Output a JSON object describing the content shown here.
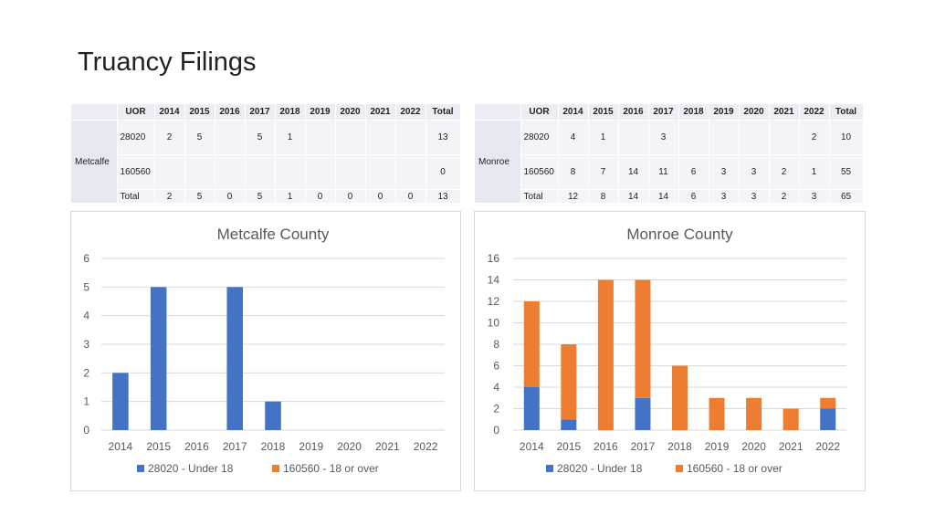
{
  "page_title": "Truancy Filings",
  "tables": {
    "metcalfe": {
      "county": "Metcalfe",
      "headers": [
        "UOR",
        "2014",
        "2015",
        "2016",
        "2017",
        "2018",
        "2019",
        "2020",
        "2021",
        "2022",
        "Total"
      ],
      "rows": [
        [
          "28020",
          "2",
          "5",
          "",
          "5",
          "1",
          "",
          "",
          "",
          "",
          "13"
        ],
        [
          "160560",
          "",
          "",
          "",
          "",
          "",
          "",
          "",
          "",
          "",
          "0"
        ],
        [
          "Total",
          "2",
          "5",
          "0",
          "5",
          "1",
          "0",
          "0",
          "0",
          "0",
          "13"
        ]
      ]
    },
    "monroe": {
      "county": "Monroe",
      "headers": [
        "UOR",
        "2014",
        "2015",
        "2016",
        "2017",
        "2018",
        "2019",
        "2020",
        "2021",
        "2022",
        "Total"
      ],
      "rows": [
        [
          "28020",
          "4",
          "1",
          "",
          "3",
          "",
          "",
          "",
          "",
          "2",
          "10"
        ],
        [
          "160560",
          "8",
          "7",
          "14",
          "11",
          "6",
          "3",
          "3",
          "2",
          "1",
          "55"
        ],
        [
          "Total",
          "12",
          "8",
          "14",
          "14",
          "6",
          "3",
          "3",
          "2",
          "3",
          "65"
        ]
      ]
    }
  },
  "chart_data": [
    {
      "type": "bar",
      "stacked": true,
      "title": "Metcalfe County",
      "categories": [
        "2014",
        "2015",
        "2016",
        "2017",
        "2018",
        "2019",
        "2020",
        "2021",
        "2022"
      ],
      "series": [
        {
          "name": "28020 - Under 18",
          "color": "#4472c4",
          "values": [
            2,
            5,
            0,
            5,
            1,
            0,
            0,
            0,
            0
          ]
        },
        {
          "name": "160560 - 18 or over",
          "color": "#ed7d31",
          "values": [
            0,
            0,
            0,
            0,
            0,
            0,
            0,
            0,
            0
          ]
        }
      ],
      "yticks": [
        "0",
        "1",
        "2",
        "3",
        "4",
        "5",
        "6"
      ],
      "ylim": [
        0,
        6
      ],
      "grid": true,
      "legend": "bottom"
    },
    {
      "type": "bar",
      "stacked": true,
      "title": "Monroe County",
      "categories": [
        "2014",
        "2015",
        "2016",
        "2017",
        "2018",
        "2019",
        "2020",
        "2021",
        "2022"
      ],
      "series": [
        {
          "name": "28020 - Under 18",
          "color": "#4472c4",
          "values": [
            4,
            1,
            0,
            3,
            0,
            0,
            0,
            0,
            2
          ]
        },
        {
          "name": "160560 - 18 or over",
          "color": "#ed7d31",
          "values": [
            8,
            7,
            14,
            11,
            6,
            3,
            3,
            2,
            1
          ]
        }
      ],
      "yticks": [
        "0",
        "2",
        "4",
        "6",
        "8",
        "10",
        "12",
        "14",
        "16"
      ],
      "ylim": [
        0,
        16
      ],
      "grid": true,
      "legend": "bottom"
    }
  ]
}
